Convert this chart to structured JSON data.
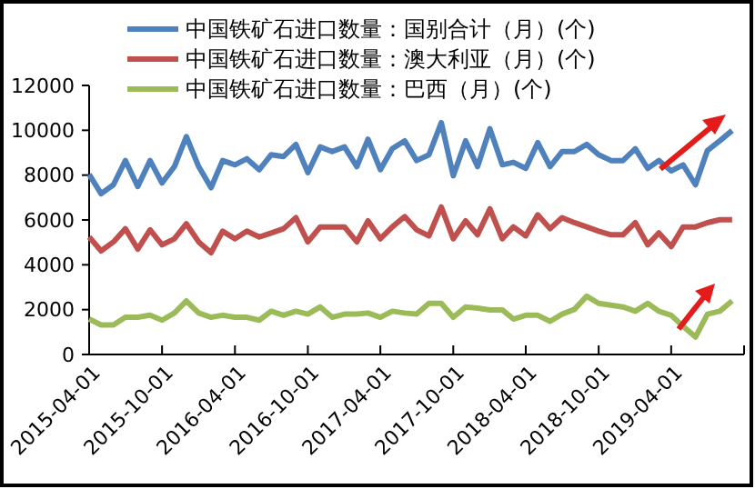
{
  "chart_data": {
    "type": "line",
    "x": [
      "2015-04",
      "2015-05",
      "2015-06",
      "2015-07",
      "2015-08",
      "2015-09",
      "2015-10",
      "2015-11",
      "2015-12",
      "2016-01",
      "2016-02",
      "2016-03",
      "2016-04",
      "2016-05",
      "2016-06",
      "2016-07",
      "2016-08",
      "2016-09",
      "2016-10",
      "2016-11",
      "2016-12",
      "2017-01",
      "2017-02",
      "2017-03",
      "2017-04",
      "2017-05",
      "2017-06",
      "2017-07",
      "2017-08",
      "2017-09",
      "2017-10",
      "2017-11",
      "2017-12",
      "2018-01",
      "2018-02",
      "2018-03",
      "2018-04",
      "2018-05",
      "2018-06",
      "2018-07",
      "2018-08",
      "2018-09",
      "2018-10",
      "2018-11",
      "2018-12",
      "2019-01",
      "2019-02",
      "2019-03",
      "2019-04",
      "2019-05",
      "2019-06",
      "2019-07",
      "2019-08",
      "2019-09"
    ],
    "series": [
      {
        "name": "中国铁矿石进口数量：国别合计（月）(个)",
        "color": "#4f81bd",
        "values": [
          8030,
          7170,
          7570,
          8650,
          7490,
          8650,
          7650,
          8380,
          9720,
          8380,
          7440,
          8650,
          8460,
          8730,
          8240,
          8910,
          8830,
          9370,
          8110,
          9260,
          9050,
          9260,
          8380,
          9600,
          8240,
          9180,
          9530,
          8650,
          8910,
          10340,
          7970,
          9530,
          8380,
          10070,
          8460,
          8570,
          8300,
          9450,
          8380,
          9050,
          9050,
          9370,
          8910,
          8650,
          8650,
          9180,
          8300,
          8650,
          8190,
          8460,
          7570,
          9100,
          9530,
          9990
        ]
      },
      {
        "name": "中国铁矿石进口数量：澳大利亚（月）(个)",
        "color": "#c0504d",
        "values": [
          5240,
          4620,
          5020,
          5610,
          4700,
          5560,
          4890,
          5160,
          5830,
          5020,
          4540,
          5500,
          5160,
          5500,
          5240,
          5420,
          5610,
          6100,
          5020,
          5690,
          5690,
          5690,
          5020,
          5960,
          5160,
          5690,
          6150,
          5560,
          5290,
          6580,
          5160,
          5960,
          5340,
          6500,
          5160,
          5690,
          5290,
          6230,
          5610,
          6100,
          5880,
          5690,
          5500,
          5340,
          5340,
          5880,
          4890,
          5420,
          4810,
          5690,
          5690,
          5880,
          6010,
          6010
        ]
      },
      {
        "name": "中国铁矿石进口数量：巴西（月）(个)",
        "color": "#9bbb59",
        "values": [
          1580,
          1320,
          1320,
          1660,
          1660,
          1750,
          1530,
          1850,
          2390,
          1850,
          1660,
          1750,
          1660,
          1660,
          1530,
          1930,
          1750,
          1930,
          1800,
          2120,
          1660,
          1800,
          1800,
          1850,
          1660,
          1930,
          1850,
          1800,
          2280,
          2280,
          1660,
          2120,
          2070,
          1990,
          1990,
          1580,
          1750,
          1750,
          1480,
          1800,
          2010,
          2600,
          2280,
          2200,
          2120,
          1930,
          2280,
          1930,
          1750,
          1260,
          780,
          1800,
          1930,
          2390
        ]
      }
    ],
    "xlim": [
      "2015-04-01",
      "2019-10-01"
    ],
    "xticks": [
      "2015-04-01",
      "2015-10-01",
      "2016-04-01",
      "2016-10-01",
      "2017-04-01",
      "2017-10-01",
      "2018-04-01",
      "2018-10-01",
      "2019-04-01",
      {
        "value": "2019-10-01",
        "label": null
      }
    ],
    "ylim": [
      0,
      12000
    ],
    "yticks": [
      0,
      2000,
      4000,
      6000,
      8000,
      10000,
      12000
    ],
    "grid": false,
    "legend": "top",
    "marker": "none",
    "line_style": "solid"
  }
}
